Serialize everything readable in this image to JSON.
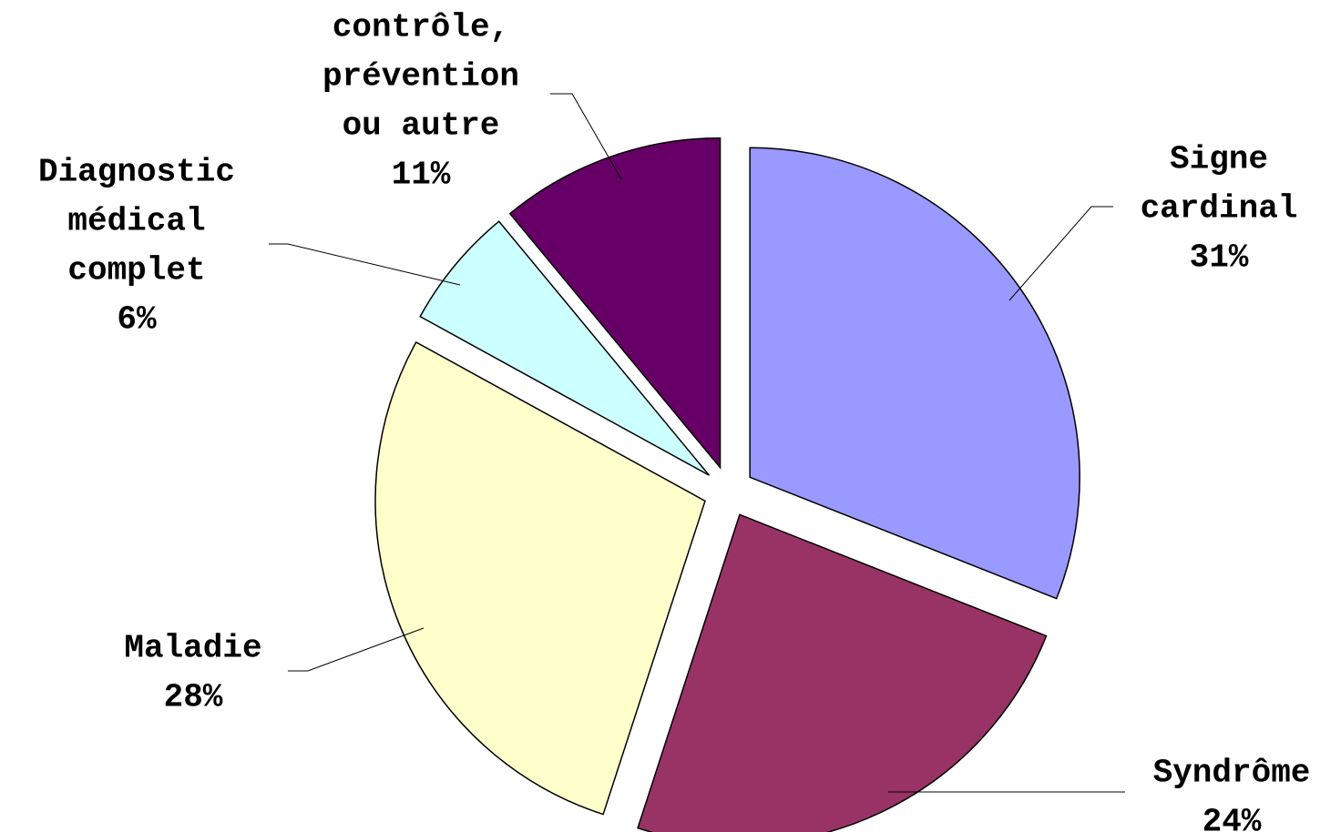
{
  "chart_data": {
    "type": "pie",
    "title": "",
    "legend": "none",
    "exploded": true,
    "slices": [
      {
        "label_lines": [
          "Signe",
          "cardinal"
        ],
        "percent_label": "31%",
        "value": 31,
        "color": "#9999ff"
      },
      {
        "label_lines": [
          "Syndrôme"
        ],
        "percent_label": "24%",
        "value": 24,
        "color": "#993366"
      },
      {
        "label_lines": [
          "Maladie"
        ],
        "percent_label": "28%",
        "value": 28,
        "color": "#ffffcc"
      },
      {
        "label_lines": [
          "Diagnostic",
          "médical",
          "complet"
        ],
        "percent_label": "6%",
        "value": 6,
        "color": "#ccffff"
      },
      {
        "label_lines": [
          "contrôle,",
          "prévention",
          "ou autre"
        ],
        "percent_label": "11%",
        "value": 11,
        "color": "#660066"
      }
    ]
  }
}
